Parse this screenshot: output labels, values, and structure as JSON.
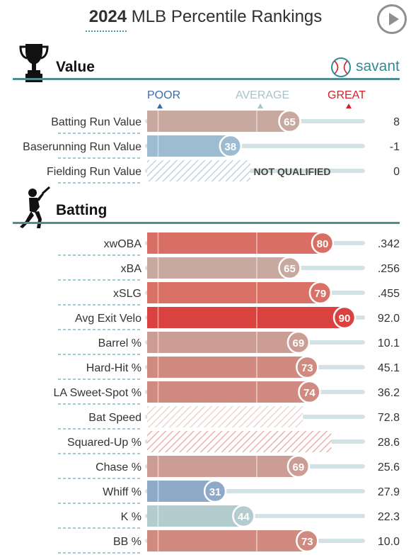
{
  "header": {
    "year": "2024",
    "title_rest": "MLB Percentile Rankings",
    "play_icon": "play-icon"
  },
  "brand": {
    "name": "savant",
    "icon": "baseball-icon",
    "color": "#2f8c95"
  },
  "scale": {
    "poor_label": "POOR",
    "average_label": "AVERAGE",
    "great_label": "GREAT",
    "poor_color": "#3b6bab",
    "average_color": "#a9c3c6",
    "great_color": "#d42027"
  },
  "chart_data": {
    "type": "bar",
    "percentile_range": [
      0,
      100
    ],
    "sections": [
      {
        "name": "Value",
        "icon": "trophy-icon",
        "metrics": [
          {
            "label": "Batting Run Value",
            "percentile": 65,
            "value": "8",
            "color": "#c8a9a0",
            "qualified": true
          },
          {
            "label": "Baserunning Run Value",
            "percentile": 38,
            "value": "-1",
            "color": "#9dbbd1",
            "qualified": true
          },
          {
            "label": "Fielding Run Value",
            "percentile": 50,
            "value": "0",
            "color": "#bfd6d8",
            "qualified": false,
            "status": "NOT QUALIFIED"
          }
        ]
      },
      {
        "name": "Batting",
        "icon": "batter-icon",
        "metrics": [
          {
            "label": "xwOBA",
            "percentile": 80,
            "value": ".342",
            "color": "#d96e65",
            "qualified": true
          },
          {
            "label": "xBA",
            "percentile": 65,
            "value": ".256",
            "color": "#c8a9a0",
            "qualified": true
          },
          {
            "label": "xSLG",
            "percentile": 79,
            "value": ".455",
            "color": "#d97167",
            "qualified": true
          },
          {
            "label": "Avg Exit Velo",
            "percentile": 90,
            "value": "92.0",
            "color": "#d9423e",
            "qualified": true
          },
          {
            "label": "Barrel %",
            "percentile": 69,
            "value": "10.1",
            "color": "#cc9d95",
            "qualified": true
          },
          {
            "label": "Hard-Hit %",
            "percentile": 73,
            "value": "45.1",
            "color": "#d08a80",
            "qualified": true
          },
          {
            "label": "LA Sweet-Spot %",
            "percentile": 74,
            "value": "36.2",
            "color": "#d18a81",
            "qualified": true
          },
          {
            "label": "Bat Speed",
            "percentile": 71,
            "value": "72.8",
            "color": "#ecd4d1",
            "qualified": false,
            "style": "hatched"
          },
          {
            "label": "Squared-Up %",
            "percentile": 84,
            "value": "28.6",
            "color": "#ecb1ac",
            "qualified": false,
            "style": "hatched"
          },
          {
            "label": "Chase %",
            "percentile": 69,
            "value": "25.6",
            "color": "#cc9d95",
            "qualified": true
          },
          {
            "label": "Whiff %",
            "percentile": 31,
            "value": "27.9",
            "color": "#8fa9c8",
            "qualified": true
          },
          {
            "label": "K %",
            "percentile": 44,
            "value": "22.3",
            "color": "#b2cccf",
            "qualified": true
          },
          {
            "label": "BB %",
            "percentile": 73,
            "value": "10.0",
            "color": "#d08a80",
            "qualified": true
          }
        ]
      }
    ]
  }
}
